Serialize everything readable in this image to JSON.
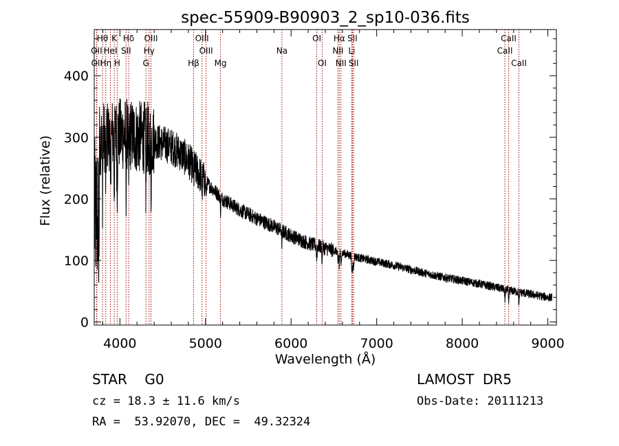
{
  "chart_data": {
    "type": "line",
    "title": "spec-55909-B90903_2_sp10-036.fits",
    "xlabel": "Wavelength (Å)",
    "ylabel": "Flux (relative)",
    "xlim": [
      3700,
      9100
    ],
    "ylim": [
      -5,
      475
    ],
    "xticks": [
      4000,
      5000,
      6000,
      7000,
      8000,
      9000
    ],
    "yticks": [
      0,
      100,
      200,
      300,
      400
    ],
    "grid": false,
    "series": [
      {
        "color": "#000000",
        "continuum": [
          [
            3700,
            290
          ],
          [
            3800,
            300
          ],
          [
            3900,
            305
          ],
          [
            4000,
            305
          ],
          [
            4100,
            305
          ],
          [
            4200,
            300
          ],
          [
            4300,
            300
          ],
          [
            4400,
            295
          ],
          [
            4500,
            290
          ],
          [
            4600,
            285
          ],
          [
            4700,
            275
          ],
          [
            4800,
            262
          ],
          [
            4900,
            245
          ],
          [
            5000,
            228
          ],
          [
            5200,
            200
          ],
          [
            5400,
            182
          ],
          [
            5600,
            168
          ],
          [
            5800,
            155
          ],
          [
            6000,
            140
          ],
          [
            6200,
            128
          ],
          [
            6400,
            120
          ],
          [
            6600,
            112
          ],
          [
            6800,
            104
          ],
          [
            7000,
            98
          ],
          [
            7200,
            92
          ],
          [
            7400,
            85
          ],
          [
            7600,
            78
          ],
          [
            7800,
            72
          ],
          [
            8000,
            67
          ],
          [
            8200,
            62
          ],
          [
            8400,
            56
          ],
          [
            8600,
            50
          ],
          [
            8800,
            45
          ],
          [
            9000,
            40
          ],
          [
            9050,
            40
          ]
        ]
      }
    ],
    "spectral_lines": [
      {
        "label": "Hθ",
        "wavelength": 3797,
        "row": 0
      },
      {
        "label": "K",
        "wavelength": 3934,
        "row": 0
      },
      {
        "label": "Hδ",
        "wavelength": 4102,
        "row": 0
      },
      {
        "label": "OIII",
        "wavelength": 4363,
        "row": 0
      },
      {
        "label": "OIII",
        "wavelength": 4959,
        "row": 0
      },
      {
        "label": "OI",
        "wavelength": 6300,
        "row": 0
      },
      {
        "label": "Hα",
        "wavelength": 6563,
        "row": 0
      },
      {
        "label": "SII",
        "wavelength": 6717,
        "row": 0
      },
      {
        "label": "CaII",
        "wavelength": 8542,
        "row": 0
      },
      {
        "label": "OII",
        "wavelength": 3727,
        "row": 1
      },
      {
        "label": "HeI",
        "wavelength": 3889,
        "row": 1
      },
      {
        "label": "SII",
        "wavelength": 4072,
        "row": 1
      },
      {
        "label": "Hγ",
        "wavelength": 4341,
        "row": 1
      },
      {
        "label": "OIII",
        "wavelength": 5007,
        "row": 1
      },
      {
        "label": "Na",
        "wavelength": 5893,
        "row": 1
      },
      {
        "label": "NII",
        "wavelength": 6548,
        "row": 1
      },
      {
        "label": "Li",
        "wavelength": 6708,
        "row": 1
      },
      {
        "label": "CaII",
        "wavelength": 8498,
        "row": 1
      },
      {
        "label": "OII",
        "wavelength": 3730,
        "row": 2
      },
      {
        "label": "Hη",
        "wavelength": 3835,
        "row": 2
      },
      {
        "label": "H",
        "wavelength": 3968,
        "row": 2
      },
      {
        "label": "G",
        "wavelength": 4304,
        "row": 2
      },
      {
        "label": "Hβ",
        "wavelength": 4861,
        "row": 2
      },
      {
        "label": "Mg",
        "wavelength": 5175,
        "row": 2
      },
      {
        "label": "OI",
        "wavelength": 6363,
        "row": 2
      },
      {
        "label": "NII",
        "wavelength": 6583,
        "row": 2
      },
      {
        "label": "SII",
        "wavelength": 6731,
        "row": 2
      },
      {
        "label": "CaII",
        "wavelength": 8662,
        "row": 2
      }
    ],
    "line_marker_color": "#a00000"
  },
  "info": {
    "class": "STAR    G0",
    "survey": "LAMOST  DR5",
    "cz": "cz = 18.3 ± 11.6 km/s",
    "obs_date": "Obs-Date: 20111213",
    "coords": "RA =  53.92070, DEC =  49.32324"
  }
}
